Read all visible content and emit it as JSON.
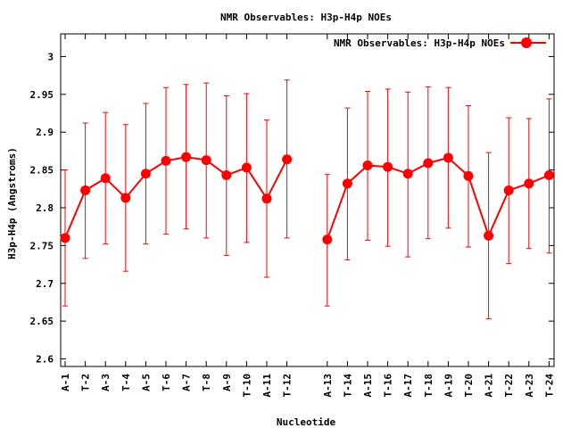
{
  "chart_data": {
    "type": "line",
    "title": "NMR Observables: H3p-H4p NOEs",
    "xlabel": "Nucleotide",
    "ylabel": "H3p-H4p (Angstroms)",
    "ylim": [
      2.59,
      3.03
    ],
    "yticks": [
      "2.6",
      "2.65",
      "2.7",
      "2.75",
      "2.8",
      "2.85",
      "2.9",
      "2.95",
      "3"
    ],
    "legend_position": "top-right",
    "grid": false,
    "colors": {
      "series": "#ff0000",
      "axis": "#000000",
      "background": "#ffffff"
    },
    "series": [
      {
        "name": "NMR Observables: H3p-H4p NOEs",
        "points": [
          {
            "x": "A-1",
            "y": 2.76,
            "err_low": 2.67,
            "err_high": 2.85
          },
          {
            "x": "T-2",
            "y": 2.823,
            "err_low": 2.733,
            "err_high": 2.912
          },
          {
            "x": "A-3",
            "y": 2.839,
            "err_low": 2.752,
            "err_high": 2.926
          },
          {
            "x": "T-4",
            "y": 2.813,
            "err_low": 2.716,
            "err_high": 2.91
          },
          {
            "x": "A-5",
            "y": 2.845,
            "err_low": 2.752,
            "err_high": 2.938
          },
          {
            "x": "T-6",
            "y": 2.862,
            "err_low": 2.765,
            "err_high": 2.959
          },
          {
            "x": "A-7",
            "y": 2.867,
            "err_low": 2.772,
            "err_high": 2.963
          },
          {
            "x": "T-8",
            "y": 2.863,
            "err_low": 2.76,
            "err_high": 2.965
          },
          {
            "x": "A-9",
            "y": 2.843,
            "err_low": 2.737,
            "err_high": 2.948
          },
          {
            "x": "T-10",
            "y": 2.853,
            "err_low": 2.754,
            "err_high": 2.951
          },
          {
            "x": "A-11",
            "y": 2.812,
            "err_low": 2.708,
            "err_high": 2.916
          },
          {
            "x": "T-12",
            "y": 2.864,
            "err_low": 2.76,
            "err_high": 2.969
          },
          {
            "x": "A-13",
            "y": 2.758,
            "err_low": 2.67,
            "err_high": 2.844
          },
          {
            "x": "T-14",
            "y": 2.832,
            "err_low": 2.731,
            "err_high": 2.932
          },
          {
            "x": "A-15",
            "y": 2.856,
            "err_low": 2.757,
            "err_high": 2.954
          },
          {
            "x": "T-16",
            "y": 2.854,
            "err_low": 2.749,
            "err_high": 2.957
          },
          {
            "x": "A-17",
            "y": 2.845,
            "err_low": 2.735,
            "err_high": 2.953
          },
          {
            "x": "T-18",
            "y": 2.859,
            "err_low": 2.759,
            "err_high": 2.96
          },
          {
            "x": "A-19",
            "y": 2.866,
            "err_low": 2.773,
            "err_high": 2.959
          },
          {
            "x": "T-20",
            "y": 2.842,
            "err_low": 2.748,
            "err_high": 2.935
          },
          {
            "x": "A-21",
            "y": 2.763,
            "err_low": 2.653,
            "err_high": 2.873
          },
          {
            "x": "T-22",
            "y": 2.823,
            "err_low": 2.726,
            "err_high": 2.919
          },
          {
            "x": "A-23",
            "y": 2.832,
            "err_low": 2.746,
            "err_high": 2.918
          },
          {
            "x": "T-24",
            "y": 2.843,
            "err_low": 2.74,
            "err_high": 2.944
          }
        ],
        "segments": [
          [
            0,
            11
          ],
          [
            12,
            23
          ]
        ]
      }
    ]
  }
}
